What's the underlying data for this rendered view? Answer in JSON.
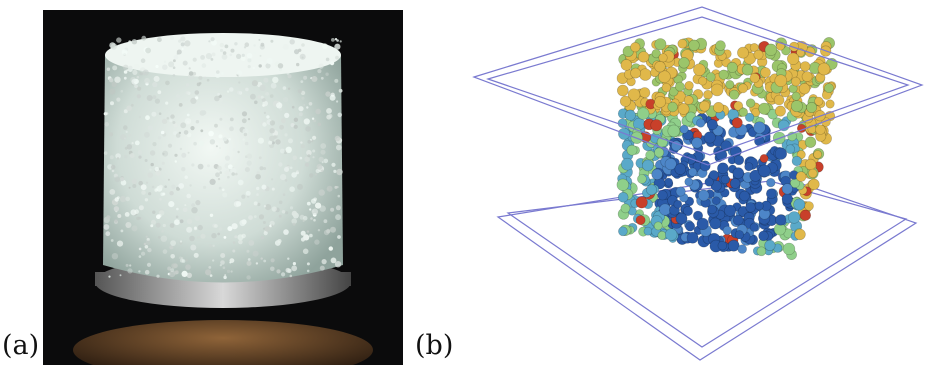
{
  "panels": [
    {
      "label": "(a)",
      "content": "photo"
    },
    {
      "label": "(b)",
      "content": "rendering"
    }
  ],
  "colors": {
    "photo_background": "#0b0b0c",
    "beads": "#dfe7e3",
    "cage_lines": "#7a7ad0",
    "cool_spheres": "#2a5aa8",
    "warm_spheres": "#e0b84a",
    "hot_spheres": "#c8402a"
  }
}
